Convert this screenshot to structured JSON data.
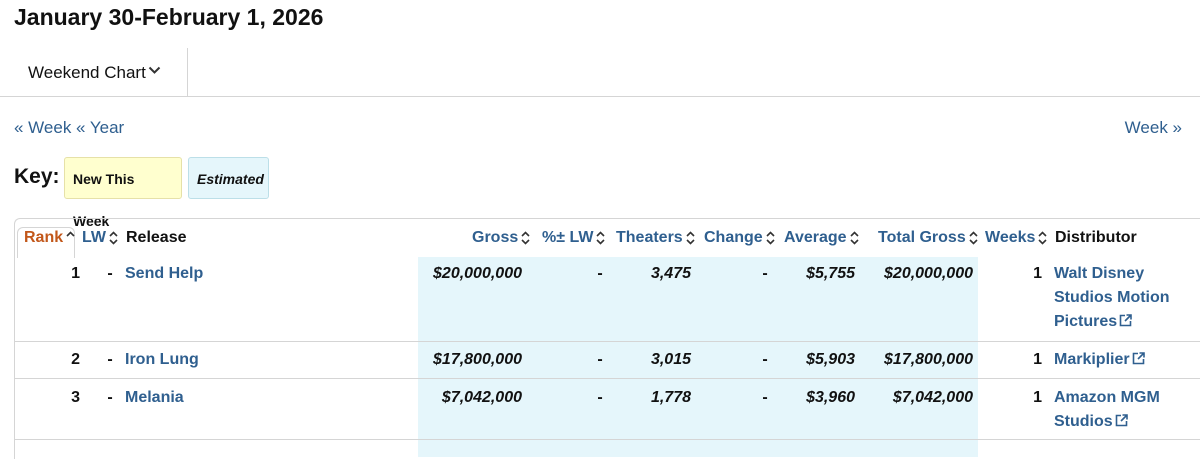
{
  "page_title": "January 30-February 1, 2026",
  "chart_dropdown": {
    "label": "Weekend Chart",
    "icon": "chevron-down-icon"
  },
  "nav": {
    "prev_week": "« Week",
    "prev_year": "« Year",
    "next_week": "Week »"
  },
  "key": {
    "label": "Key:",
    "new_this_week": "New This Week",
    "estimated": "Estimated"
  },
  "columns": {
    "rank": "Rank",
    "lw": "LW",
    "release": "Release",
    "gross": "Gross",
    "pct_lw": "%± LW",
    "theaters": "Theaters",
    "change": "Change",
    "average": "Average",
    "total_gross": "Total Gross",
    "weeks": "Weeks",
    "distributor": "Distributor"
  },
  "rows": [
    {
      "rank": "1",
      "lw": "-",
      "release": "Send Help",
      "gross": "$20,000,000",
      "pct_lw": "-",
      "theaters": "3,475",
      "change": "-",
      "average": "$5,755",
      "total_gross": "$20,000,000",
      "weeks": "1",
      "distributor_lines": [
        "Walt Disney",
        "Studios Motion",
        "Pictures"
      ]
    },
    {
      "rank": "2",
      "lw": "-",
      "release": "Iron Lung",
      "gross": "$17,800,000",
      "pct_lw": "-",
      "theaters": "3,015",
      "change": "-",
      "average": "$5,903",
      "total_gross": "$17,800,000",
      "weeks": "1",
      "distributor_lines": [
        "Markiplier"
      ]
    },
    {
      "rank": "3",
      "lw": "-",
      "release": "Melania",
      "gross": "$7,042,000",
      "pct_lw": "-",
      "theaters": "1,778",
      "change": "-",
      "average": "$3,960",
      "total_gross": "$7,042,000",
      "weeks": "1",
      "distributor_lines": [
        "Amazon MGM",
        "Studios"
      ]
    }
  ],
  "colors": {
    "link": "#2f5f8f",
    "rank_active": "#c2571a",
    "estimated_bg": "#e5f6fb",
    "new_bg": "#ffffcf"
  }
}
